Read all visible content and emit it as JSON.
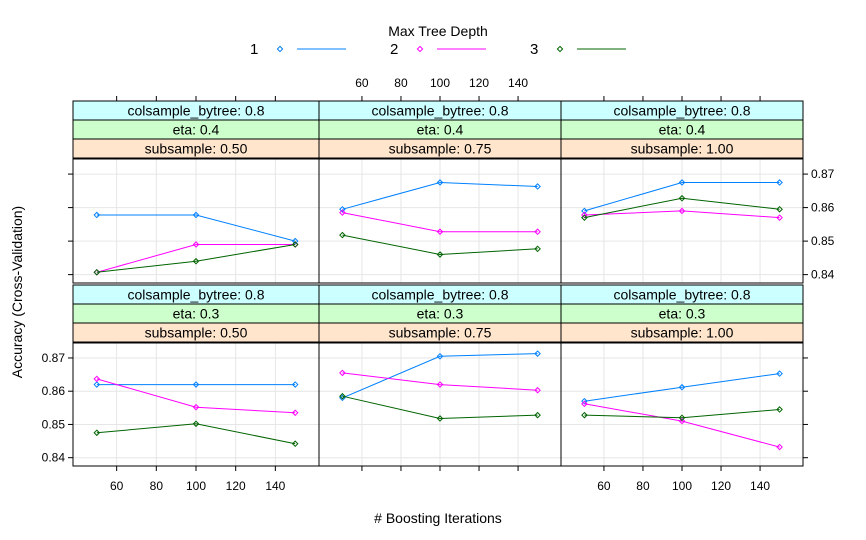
{
  "chart_data": {
    "type": "line",
    "legend": {
      "title": "Max Tree Depth",
      "position": "top",
      "entries": [
        "1",
        "2",
        "3"
      ]
    },
    "xlabel": "# Boosting Iterations",
    "ylabel": "Accuracy (Cross-Validation)",
    "x": [
      50,
      100,
      150
    ],
    "xlim": [
      38,
      162
    ],
    "xticks": [
      60,
      80,
      100,
      120,
      140
    ],
    "ylim": [
      0.8375,
      0.8745
    ],
    "yticks": [
      0.84,
      0.85,
      0.86,
      0.87
    ],
    "ytick_labels": [
      "0.84",
      "0.85",
      "0.86",
      "0.87"
    ],
    "grid": true,
    "colors": [
      "#0080ff",
      "#ff00ff",
      "#006400"
    ],
    "panels": [
      {
        "strips": [
          "colsample_bytree: 0.8",
          "eta: 0.4",
          "subsample: 0.50"
        ],
        "series": [
          {
            "name": "1",
            "values": [
              0.8578,
              0.8578,
              0.85
            ]
          },
          {
            "name": "2",
            "values": [
              0.8407,
              0.849,
              0.849
            ]
          },
          {
            "name": "3",
            "values": [
              0.8407,
              0.844,
              0.849
            ]
          }
        ]
      },
      {
        "strips": [
          "colsample_bytree: 0.8",
          "eta: 0.4",
          "subsample: 0.75"
        ],
        "series": [
          {
            "name": "1",
            "values": [
              0.8595,
              0.8675,
              0.8663
            ]
          },
          {
            "name": "2",
            "values": [
              0.8585,
              0.8528,
              0.8528
            ]
          },
          {
            "name": "3",
            "values": [
              0.8518,
              0.846,
              0.8477
            ]
          }
        ]
      },
      {
        "strips": [
          "colsample_bytree: 0.8",
          "eta: 0.4",
          "subsample: 1.00"
        ],
        "series": [
          {
            "name": "1",
            "values": [
              0.859,
              0.8675,
              0.8675
            ]
          },
          {
            "name": "2",
            "values": [
              0.8578,
              0.859,
              0.857
            ]
          },
          {
            "name": "3",
            "values": [
              0.857,
              0.8628,
              0.8595
            ]
          }
        ]
      },
      {
        "strips": [
          "colsample_bytree: 0.8",
          "eta: 0.3",
          "subsample: 0.50"
        ],
        "series": [
          {
            "name": "1",
            "values": [
              0.862,
              0.862,
              0.862
            ]
          },
          {
            "name": "2",
            "values": [
              0.8637,
              0.8552,
              0.8535
            ]
          },
          {
            "name": "3",
            "values": [
              0.8475,
              0.8502,
              0.8442
            ]
          }
        ]
      },
      {
        "strips": [
          "colsample_bytree: 0.8",
          "eta: 0.3",
          "subsample: 0.75"
        ],
        "series": [
          {
            "name": "1",
            "values": [
              0.858,
              0.8705,
              0.8713
            ]
          },
          {
            "name": "2",
            "values": [
              0.8655,
              0.862,
              0.8603
            ]
          },
          {
            "name": "3",
            "values": [
              0.8585,
              0.8518,
              0.8528
            ]
          }
        ]
      },
      {
        "strips": [
          "colsample_bytree: 0.8",
          "eta: 0.3",
          "subsample: 1.00"
        ],
        "series": [
          {
            "name": "1",
            "values": [
              0.857,
              0.8612,
              0.8653
            ]
          },
          {
            "name": "2",
            "values": [
              0.8562,
              0.851,
              0.8432
            ]
          },
          {
            "name": "3",
            "values": [
              0.8528,
              0.852,
              0.8545
            ]
          }
        ]
      }
    ]
  }
}
